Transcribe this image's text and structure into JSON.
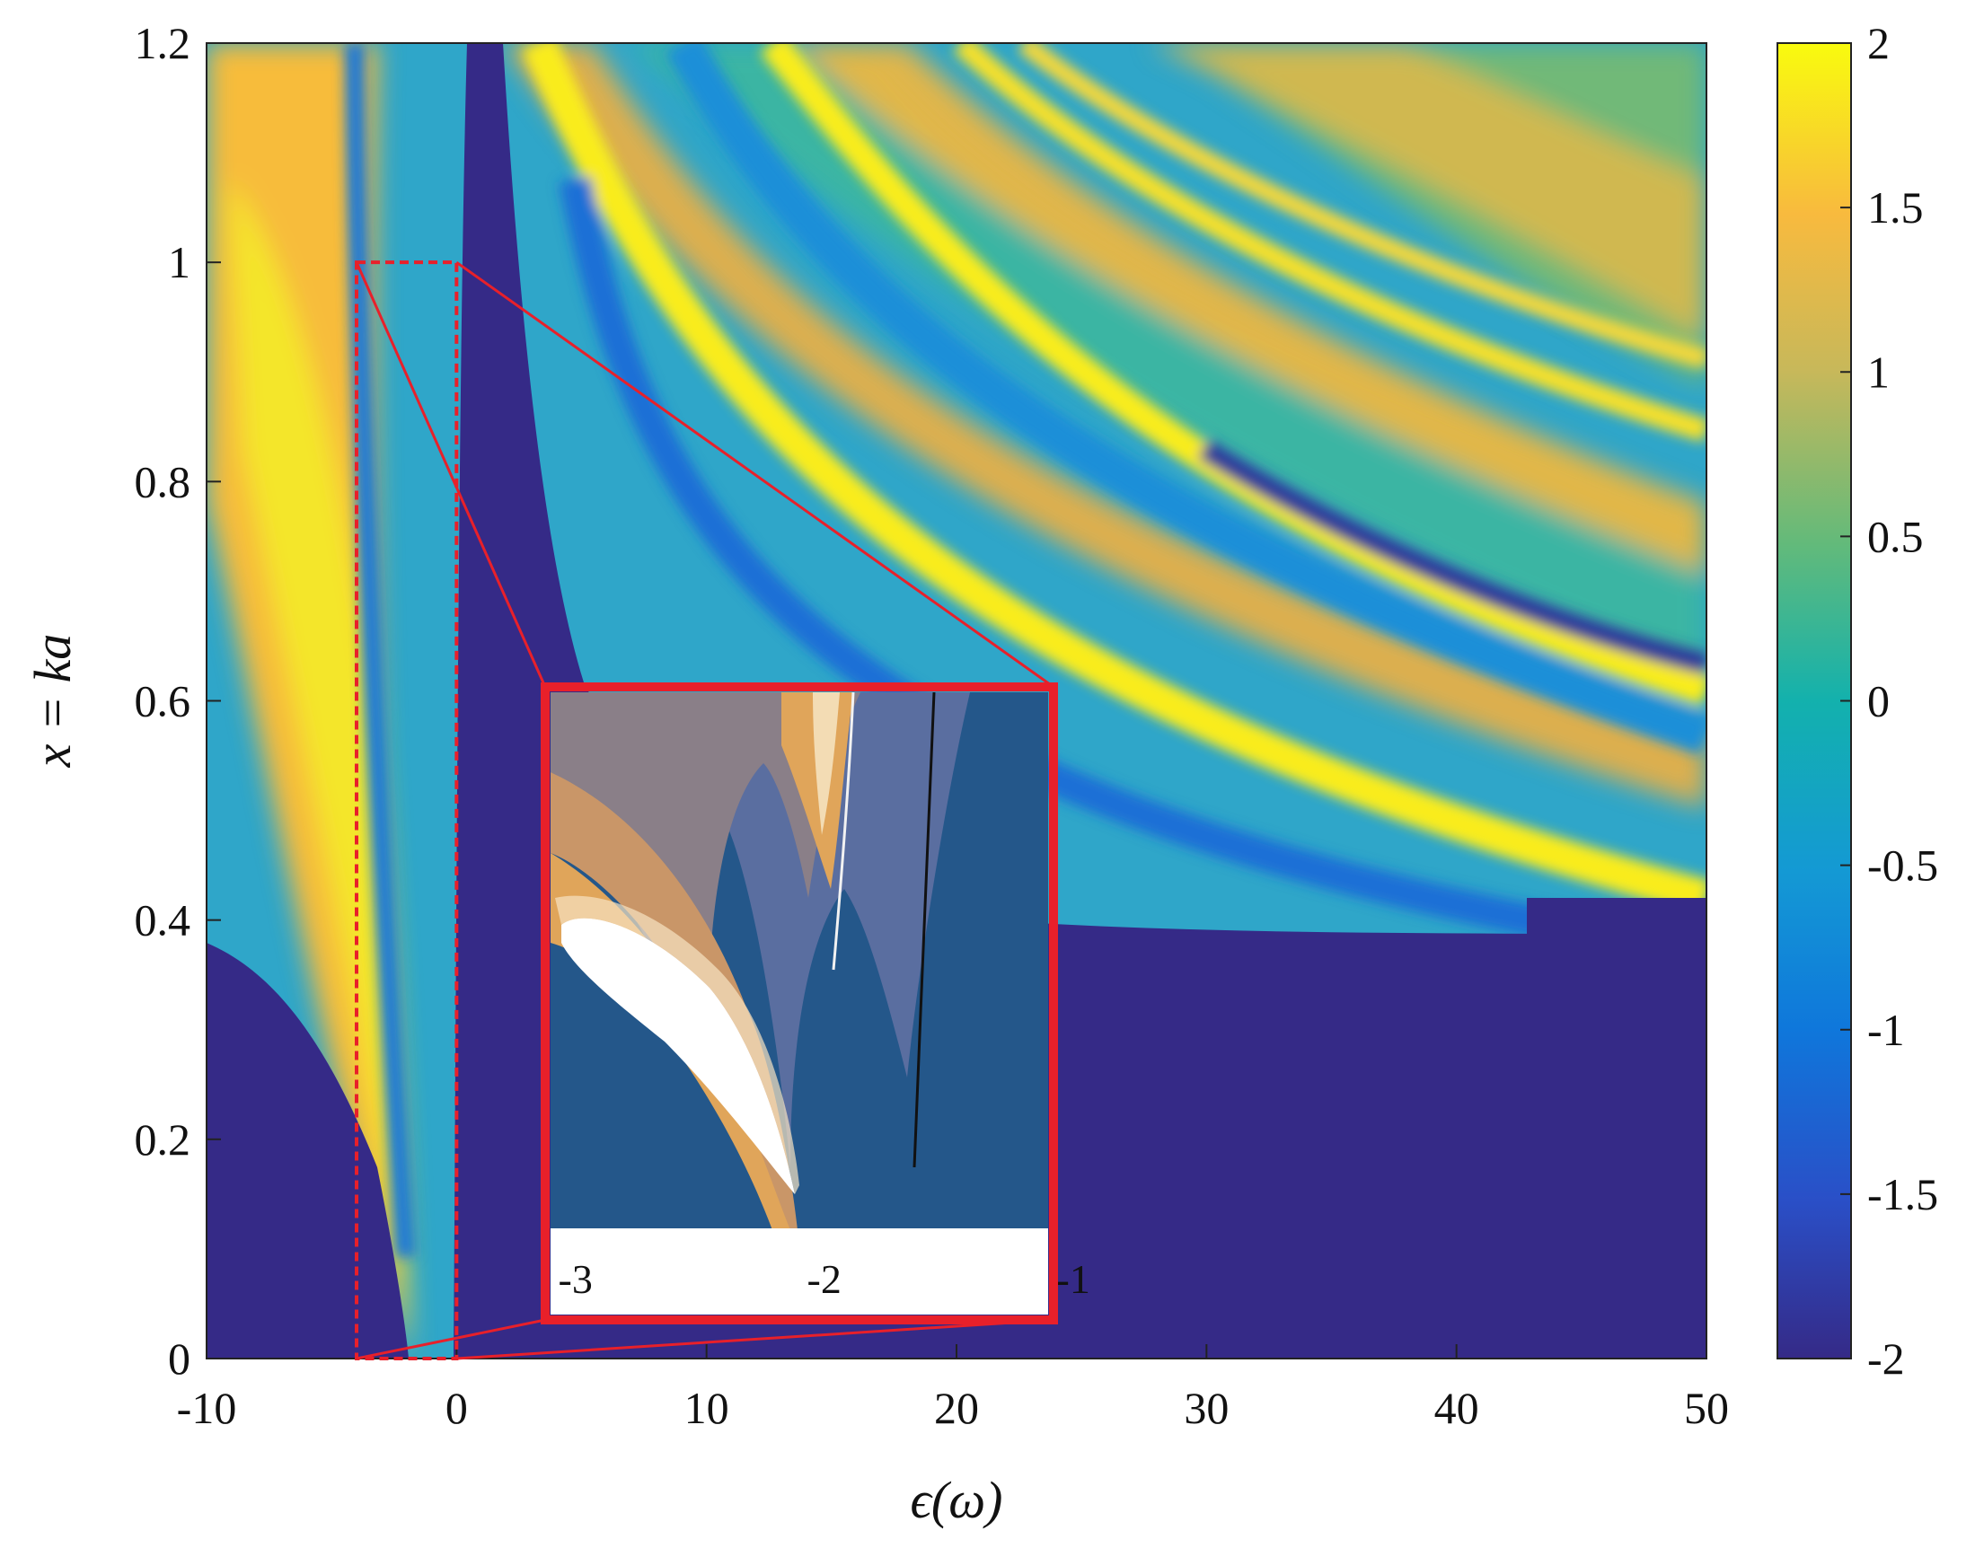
{
  "chart_data": {
    "type": "heatmap",
    "title": "",
    "xlabel": "ϵ(ω)",
    "ylabel": "x = ka",
    "xlim": [
      -10,
      50
    ],
    "ylim": [
      0,
      1.2
    ],
    "x_ticks": [
      "-10",
      "0",
      "10",
      "20",
      "30",
      "40",
      "50"
    ],
    "y_ticks": [
      "0",
      "0.2",
      "0.4",
      "0.6",
      "0.8",
      "1",
      "1.2"
    ],
    "colorbar": {
      "range": [
        -2,
        2
      ],
      "ticks": [
        "-2",
        "-1.5",
        "-1",
        "-0.5",
        "0",
        "0.5",
        "1",
        "1.5",
        "2"
      ],
      "colormap": "parula"
    },
    "colors": {
      "low": "#352a87",
      "mid": "#15b2b0",
      "high": "#f9fb0e",
      "orange": "#f6b53b",
      "highlight": "#e8202a"
    },
    "zoom_region": {
      "x": [
        -4,
        0
      ],
      "y": [
        0,
        1
      ]
    },
    "inset": {
      "x_ticks": [
        "-3",
        "-2",
        "-1"
      ],
      "xlim": [
        -3.1,
        -1.1
      ],
      "colors": {
        "background": "#24578a",
        "band": "#5a6ea0",
        "gray": "#8a7f88",
        "lobe": "#ffffff",
        "orange": "#d89a56"
      }
    }
  }
}
